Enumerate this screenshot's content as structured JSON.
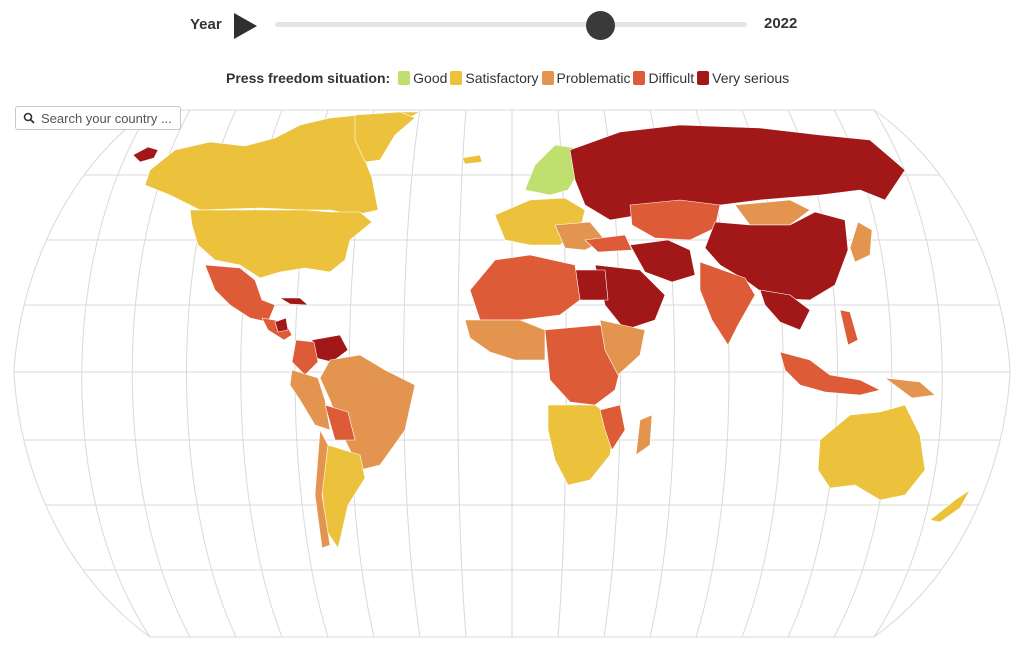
{
  "slider": {
    "label": "Year",
    "value": "2022",
    "play_icon": "play-icon"
  },
  "legend": {
    "title": "Press freedom situation:",
    "items": [
      {
        "label": "Good",
        "color": "#bfe06e"
      },
      {
        "label": "Satisfactory",
        "color": "#ecc23c"
      },
      {
        "label": "Problematic",
        "color": "#e3954f"
      },
      {
        "label": "Difficult",
        "color": "#dd5b37"
      },
      {
        "label": "Very serious",
        "color": "#a21818"
      }
    ]
  },
  "search": {
    "placeholder": "Search your country ...",
    "icon": "search-icon"
  },
  "map": {
    "projection": "robinson-like",
    "graticule": true,
    "colors": {
      "good": "#bfe06e",
      "satisfactory": "#ecc23c",
      "problematic": "#e3954f",
      "difficult": "#dd5b37",
      "very_serious": "#a21818",
      "graticule": "#d9d9d9"
    }
  }
}
